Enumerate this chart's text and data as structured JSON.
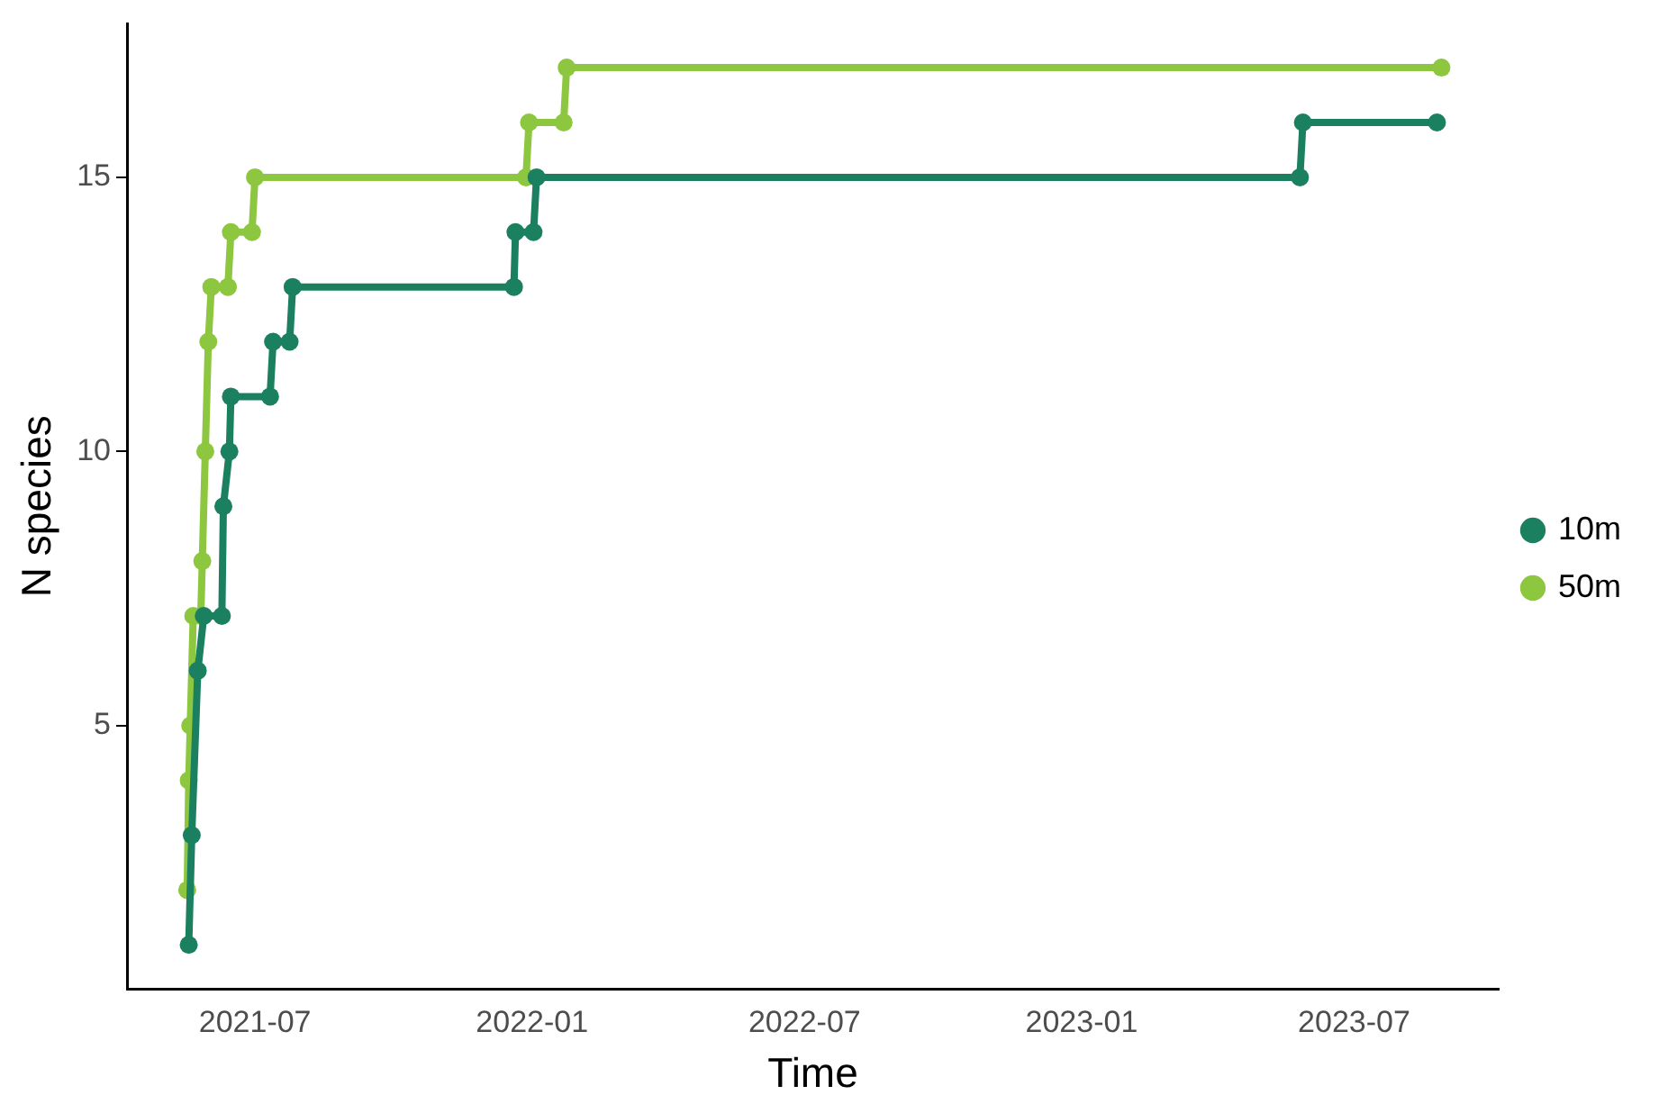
{
  "chart_data": {
    "type": "line",
    "xlabel": "Time",
    "ylabel": "N species",
    "xlim": [
      "2021-04-07",
      "2023-10-05"
    ],
    "xticks": [
      "2021-07",
      "2022-01",
      "2022-07",
      "2023-01",
      "2023-07"
    ],
    "ylim": [
      0.2,
      17.8
    ],
    "yticks": [
      5,
      10,
      15
    ],
    "grid": false,
    "legend": "right",
    "marker": "circle",
    "line_style": "solid",
    "series": [
      {
        "name": "10m",
        "color": "#1b8060",
        "x": [
          "2021-05-18",
          "2021-05-20",
          "2021-05-24",
          "2021-05-28",
          "2021-06-09",
          "2021-06-10",
          "2021-06-14",
          "2021-06-15",
          "2021-07-11",
          "2021-07-13",
          "2021-07-24",
          "2021-07-26",
          "2021-12-20",
          "2021-12-21",
          "2022-01-02",
          "2022-01-04",
          "2023-05-26",
          "2023-05-28",
          "2023-08-25"
        ],
        "values": [
          1,
          3,
          6,
          7,
          7,
          9,
          10,
          11,
          11,
          12,
          12,
          13,
          13,
          14,
          14,
          15,
          15,
          16,
          16
        ]
      },
      {
        "name": "50m",
        "color": "#8dc63f",
        "x": [
          "2021-05-17",
          "2021-05-18",
          "2021-05-19",
          "2021-05-21",
          "2021-05-26",
          "2021-05-27",
          "2021-05-29",
          "2021-05-31",
          "2021-06-02",
          "2021-06-13",
          "2021-06-15",
          "2021-06-29",
          "2021-07-01",
          "2021-12-28",
          "2021-12-30",
          "2022-01-22",
          "2022-01-24",
          "2023-08-28"
        ],
        "values": [
          2,
          4,
          5,
          7,
          7,
          8,
          10,
          12,
          13,
          13,
          14,
          14,
          15,
          15,
          16,
          16,
          17,
          17
        ]
      }
    ]
  }
}
